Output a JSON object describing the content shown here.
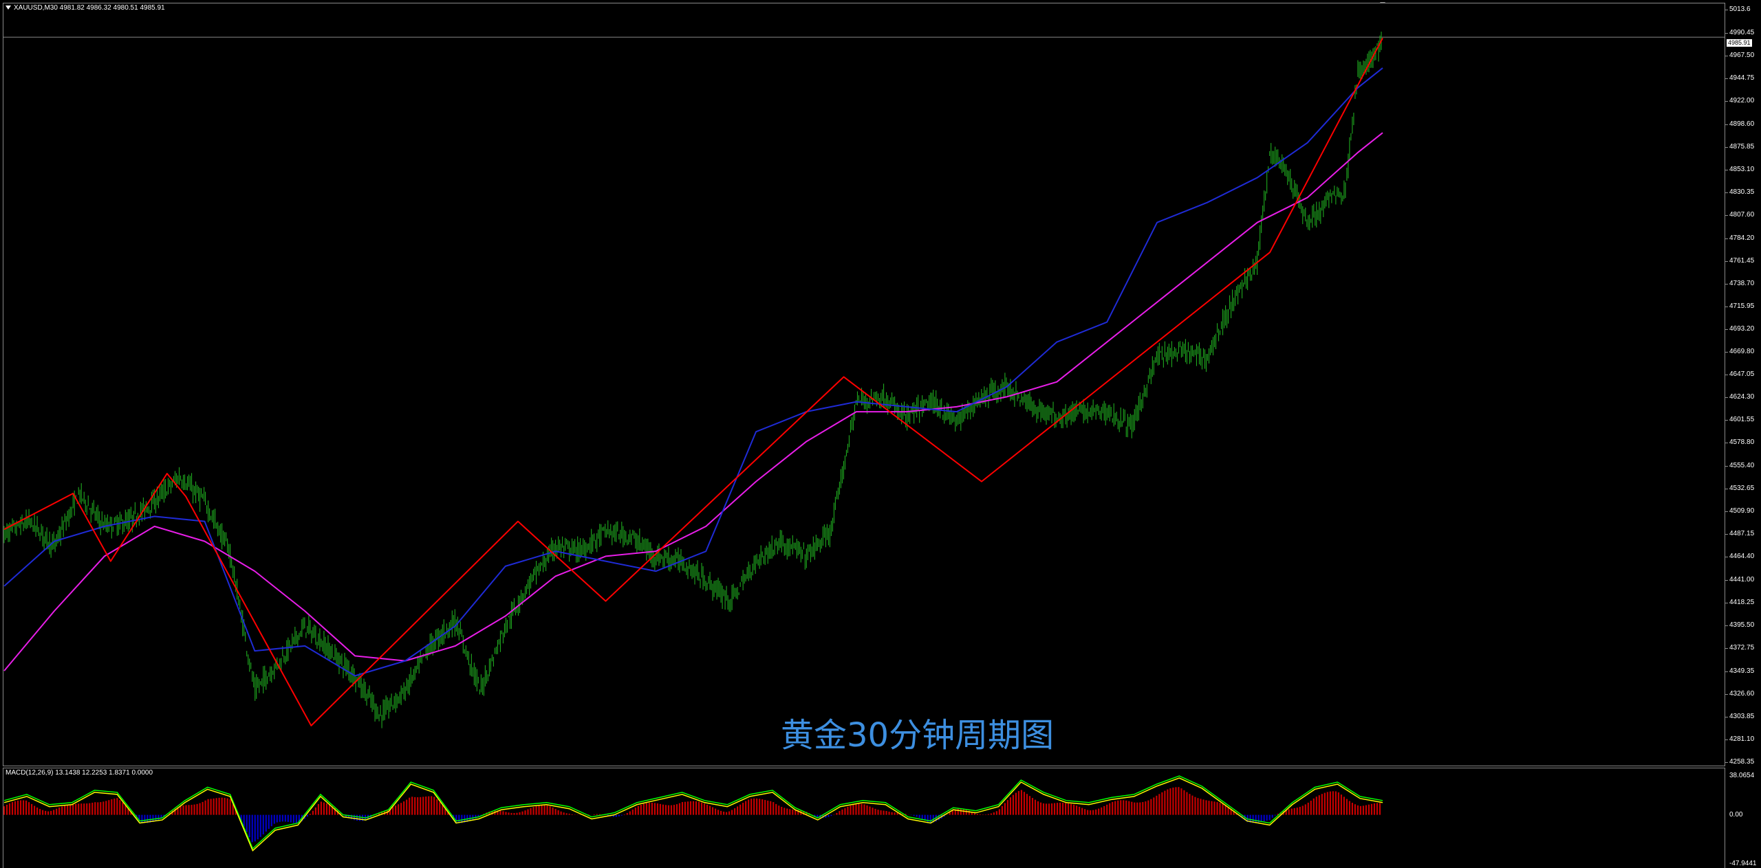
{
  "window": {
    "header": "XAUUSD,M30  4981.82 4986.32 4980.51 4985.91",
    "watermark": "黄金30分钟周期图",
    "current_price": "4985.91"
  },
  "macd": {
    "header": "MACD(12,26,9) 13.1438 12.2253 1.8371 0.0000",
    "axis_labels": [
      {
        "text": "38.0654",
        "value": 38.0654
      },
      {
        "text": "0.00",
        "value": 0
      },
      {
        "text": "-47.9441",
        "value": -47.9441
      }
    ],
    "histogram_up_color": "#c80000",
    "histogram_down_color": "#0000c8",
    "macd_line_color": "#ffff00",
    "signal_line_color": "#00ff00"
  },
  "colors": {
    "background": "#000000",
    "candle": "#1faa1f",
    "zigzag": "#ff0000",
    "ma_fast": "#1f2bd6",
    "ma_slow": "#e81ee8",
    "watermark": "#3d8fe0"
  },
  "chart_data": {
    "type": "line",
    "symbol": "XAUUSD",
    "timeframe": "M30",
    "ylim": [
      4258.35,
      5013.6
    ],
    "y_tick_labels": [
      "5013.6",
      "4990.45",
      "4967.50",
      "4944.75",
      "4922.00",
      "4898.60",
      "4875.85",
      "4853.10",
      "4830.35",
      "4807.60",
      "4784.20",
      "4761.45",
      "4738.70",
      "4715.95",
      "4693.20",
      "4669.80",
      "4647.05",
      "4624.30",
      "4601.55",
      "4578.80",
      "4555.40",
      "4532.65",
      "4509.90",
      "4487.15",
      "4464.40",
      "4441.00",
      "4418.25",
      "4395.50",
      "4372.75",
      "4349.35",
      "4326.60",
      "4303.85",
      "4281.10",
      "4258.35"
    ],
    "grid": false,
    "legend": "none",
    "series": [
      {
        "kind": "price",
        "color": "#1faa1f",
        "x": [
          0,
          20,
          40,
          60,
          80,
          100,
          120,
          140,
          160,
          180,
          200,
          220,
          240,
          260,
          280,
          300,
          320,
          340,
          360,
          380,
          400,
          420,
          440,
          460,
          480,
          500,
          520,
          540,
          560,
          580,
          600,
          620,
          640,
          660,
          680,
          700,
          720,
          740,
          760,
          780,
          800,
          820,
          840,
          860,
          880,
          900,
          920,
          940,
          960,
          980,
          1000
        ],
        "values": [
          4487,
          4500,
          4475,
          4528,
          4495,
          4500,
          4520,
          4545,
          4520,
          4470,
          4330,
          4360,
          4395,
          4370,
          4345,
          4305,
          4330,
          4375,
          4400,
          4330,
          4395,
          4440,
          4475,
          4470,
          4490,
          4485,
          4465,
          4460,
          4440,
          4420,
          4460,
          4480,
          4465,
          4490,
          4620,
          4625,
          4605,
          4620,
          4600,
          4625,
          4635,
          4615,
          4605,
          4610,
          4610,
          4595,
          4665,
          4670,
          4665,
          4720,
          4760
        ]
      },
      {
        "kind": "price",
        "color": "#1faa1f",
        "x": [
          1000,
          1010,
          1020,
          1030,
          1040,
          1050,
          1060,
          1070,
          1080,
          1090,
          1100
        ],
        "values": [
          4760,
          4870,
          4860,
          4830,
          4800,
          4810,
          4830,
          4830,
          4950,
          4960,
          4985
        ]
      },
      {
        "kind": "zigzag",
        "color": "#ff0000",
        "x": [
          0,
          55,
          85,
          130,
          145,
          245,
          410,
          480,
          670,
          780,
          1010,
          1100
        ],
        "values": [
          4492,
          4528,
          4460,
          4548,
          4525,
          4295,
          4500,
          4420,
          4645,
          4540,
          4770,
          4985
        ]
      },
      {
        "kind": "ma_fast",
        "color": "#1f2bd6",
        "x": [
          0,
          40,
          80,
          120,
          160,
          200,
          240,
          280,
          320,
          360,
          400,
          440,
          480,
          520,
          560,
          600,
          640,
          680,
          720,
          760,
          800,
          840,
          880,
          920,
          960,
          1000,
          1040,
          1080,
          1100
        ],
        "values": [
          4435,
          4480,
          4495,
          4505,
          4500,
          4370,
          4375,
          4345,
          4360,
          4395,
          4455,
          4470,
          4460,
          4450,
          4470,
          4590,
          4610,
          4620,
          4615,
          4610,
          4635,
          4680,
          4700,
          4800,
          4820,
          4845,
          4880,
          4935,
          4955
        ]
      },
      {
        "kind": "ma_slow",
        "color": "#e81ee8",
        "x": [
          0,
          40,
          80,
          120,
          160,
          200,
          240,
          280,
          320,
          360,
          400,
          440,
          480,
          520,
          560,
          600,
          640,
          680,
          720,
          760,
          800,
          840,
          880,
          920,
          960,
          1000,
          1040,
          1080,
          1100
        ],
        "values": [
          4350,
          4410,
          4465,
          4495,
          4480,
          4450,
          4410,
          4365,
          4360,
          4375,
          4405,
          4445,
          4465,
          4470,
          4495,
          4540,
          4580,
          4610,
          4610,
          4615,
          4625,
          4640,
          4680,
          4720,
          4760,
          4800,
          4825,
          4870,
          4890
        ]
      }
    ],
    "macd_values": [
      12,
      18,
      8,
      10,
      22,
      20,
      -8,
      -5,
      12,
      25,
      18,
      -35,
      -15,
      -10,
      18,
      -2,
      -5,
      3,
      30,
      22,
      -8,
      -4,
      5,
      8,
      10,
      6,
      -4,
      0,
      10,
      15,
      20,
      12,
      8,
      18,
      22,
      5,
      -5,
      8,
      12,
      10,
      -4,
      -8,
      5,
      2,
      8,
      32,
      20,
      12,
      10,
      15,
      18,
      28,
      36,
      26,
      10,
      -6,
      -10,
      10,
      25,
      30,
      16,
      12
    ]
  }
}
